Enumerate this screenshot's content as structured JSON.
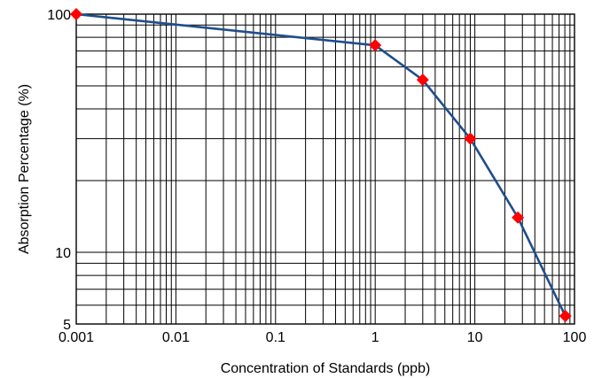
{
  "chart_data": {
    "type": "line",
    "xlabel": "Concentration of Standards (ppb)",
    "ylabel": "Absorption Percentage (%)",
    "x_scale": "log",
    "y_scale": "log",
    "xlim": [
      0.001,
      100
    ],
    "ylim": [
      5,
      100
    ],
    "x_ticks": [
      {
        "value": 0.001,
        "label": "0.001"
      },
      {
        "value": 0.01,
        "label": "0.01"
      },
      {
        "value": 0.1,
        "label": "0.1"
      },
      {
        "value": 1,
        "label": "1"
      },
      {
        "value": 10,
        "label": "10"
      },
      {
        "value": 100,
        "label": "100"
      }
    ],
    "y_ticks": [
      {
        "value": 5,
        "label": "5"
      },
      {
        "value": 10,
        "label": "10"
      },
      {
        "value": 100,
        "label": "100"
      }
    ],
    "grid": true,
    "series": [
      {
        "line_color": "#1f4e8c",
        "marker": "diamond",
        "marker_color": "#ff0000",
        "x": [
          0.001,
          1,
          3,
          9,
          27,
          81
        ],
        "y": [
          100,
          74,
          53,
          30,
          14,
          5.4
        ]
      }
    ]
  }
}
